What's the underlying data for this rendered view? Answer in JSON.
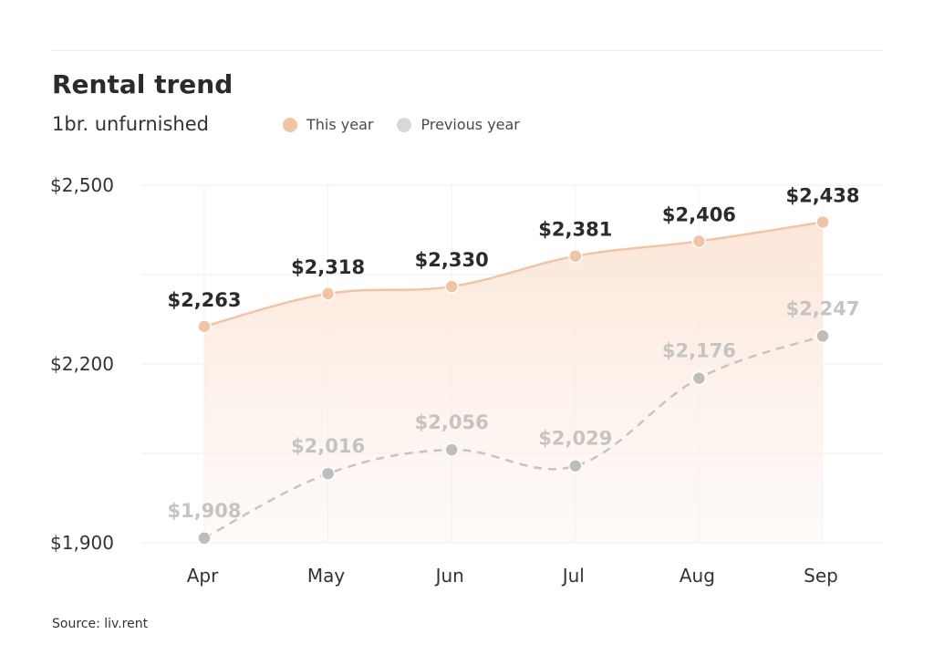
{
  "header": {
    "title": "Rental trend",
    "subtitle": "1br. unfurnished"
  },
  "footer": {
    "source": "Source: liv.rent"
  },
  "colors": {
    "this_year": "#f2c4a6",
    "previous_year": "#c8c8c8",
    "grid": "#eeeeee"
  },
  "chart_data": {
    "type": "line",
    "title": "Rental trend",
    "subtitle": "1br. unfurnished",
    "categories": [
      "Apr",
      "May",
      "Jun",
      "Jul",
      "Aug",
      "Sep"
    ],
    "ylim": [
      1900,
      2500
    ],
    "yticks": [
      {
        "value": 1900,
        "label": "$1,900"
      },
      {
        "value": 2200,
        "label": "$2,200"
      },
      {
        "value": 2500,
        "label": "$2,500"
      }
    ],
    "grid": true,
    "legend_position": "top",
    "series": [
      {
        "name": "This year",
        "values": [
          2263,
          2318,
          2330,
          2381,
          2406,
          2438
        ],
        "labels": [
          "$2,263",
          "$2,318",
          "$2,330",
          "$2,381",
          "$2,406",
          "$2,438"
        ],
        "style": "solid, filled area"
      },
      {
        "name": "Previous year",
        "values": [
          1908,
          2016,
          2056,
          2029,
          2176,
          2247
        ],
        "labels": [
          "$1,908",
          "$2,016",
          "$2,056",
          "$2,029",
          "$2,176",
          "$2,247"
        ],
        "style": "dashed"
      }
    ]
  }
}
